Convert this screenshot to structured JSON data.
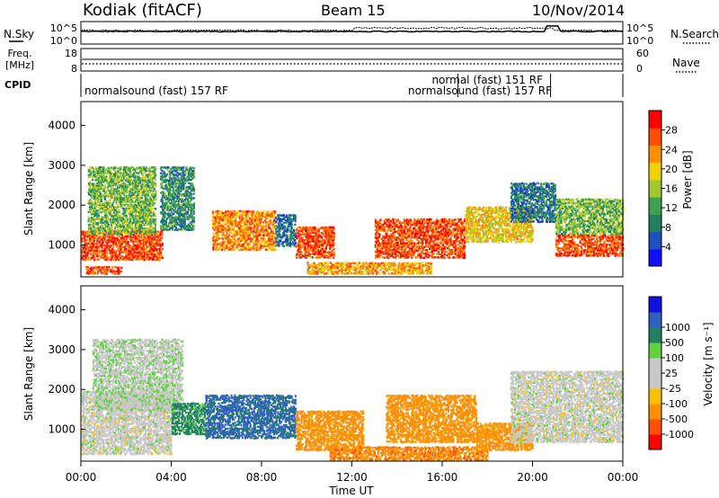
{
  "header": {
    "radar": "Kodiak (fitACF)",
    "beam": "Beam 15",
    "date": "10/Nov/2014"
  },
  "top_panels": {
    "nsky_label": "N.Sky",
    "nsearch_label": "N.Search",
    "nsky_ticks": [
      "10^5",
      "10^0"
    ],
    "nsearch_ticks": [
      "10^5",
      "10^0"
    ],
    "freq_label_1": "Freq.",
    "freq_label_2": "[MHz]",
    "freq_ticks": [
      "18",
      "8"
    ],
    "nave_label": "Nave",
    "nave_ticks": [
      "60",
      "0"
    ],
    "cpid_label": "CPID",
    "cpid_entries": [
      {
        "text": "normalsound (fast) 157 RF",
        "start_hour": 0.0
      },
      {
        "text": "normal (fast) 151 RF",
        "start_hour": 16.7
      },
      {
        "text": "normalsound (fast) 157 RF",
        "start_hour": 20.8
      }
    ]
  },
  "colors": {
    "power_scale": [
      "#1010ff",
      "#2050c0",
      "#208060",
      "#40a050",
      "#a0c830",
      "#f0d000",
      "#ff9000",
      "#ff5000",
      "#ff0000"
    ],
    "velocity_scale": [
      "#ff0000",
      "#ff5000",
      "#ff9000",
      "#ffc000",
      "#c8c8c8",
      "#c8c8c8",
      "#60d040",
      "#208060",
      "#3060c0",
      "#1010e0"
    ]
  },
  "chart_data": [
    {
      "type": "heatmap",
      "title": "",
      "ylabel": "Slant Range [km]",
      "xlabel": "",
      "y_ticks": [
        "1000",
        "2000",
        "3000",
        "4000"
      ],
      "ylim": [
        200,
        4600
      ],
      "xlim_hours": [
        0,
        24
      ],
      "colorbar_label": "Power [dB]",
      "colorbar_ticks": [
        "4",
        "8",
        "12",
        "16",
        "20",
        "24",
        "28"
      ],
      "colorbar_range": [
        0,
        32
      ],
      "regions": [
        {
          "t0": 0.0,
          "t1": 3.6,
          "r0": 650,
          "r1": 1400,
          "level": 27
        },
        {
          "t0": 0.3,
          "t1": 3.3,
          "r0": 1300,
          "r1": 3000,
          "level": 14
        },
        {
          "t0": 0.2,
          "t1": 1.8,
          "r0": 300,
          "r1": 500,
          "level": 27
        },
        {
          "t0": 3.5,
          "t1": 5.0,
          "r0": 1400,
          "r1": 3000,
          "level": 10
        },
        {
          "t0": 5.8,
          "t1": 8.6,
          "r0": 900,
          "r1": 1900,
          "level": 24
        },
        {
          "t0": 8.6,
          "t1": 9.5,
          "r0": 1000,
          "r1": 1800,
          "level": 8
        },
        {
          "t0": 9.5,
          "t1": 11.2,
          "r0": 700,
          "r1": 1500,
          "level": 27
        },
        {
          "t0": 10.0,
          "t1": 15.5,
          "r0": 300,
          "r1": 600,
          "level": 22
        },
        {
          "t0": 13.0,
          "t1": 17.0,
          "r0": 700,
          "r1": 1700,
          "level": 27
        },
        {
          "t0": 17.0,
          "t1": 20.0,
          "r0": 1100,
          "r1": 2000,
          "level": 20
        },
        {
          "t0": 19.0,
          "t1": 21.0,
          "r0": 1600,
          "r1": 2600,
          "level": 8
        },
        {
          "t0": 21.0,
          "t1": 24.0,
          "r0": 750,
          "r1": 1300,
          "level": 27
        },
        {
          "t0": 21.0,
          "t1": 24.0,
          "r0": 1300,
          "r1": 2200,
          "level": 14
        }
      ]
    },
    {
      "type": "heatmap",
      "title": "",
      "ylabel": "Slant Range [km]",
      "xlabel": "Time UT",
      "x_ticks": [
        "00:00",
        "04:00",
        "08:00",
        "12:00",
        "16:00",
        "20:00",
        "00:00"
      ],
      "y_ticks": [
        "1000",
        "2000",
        "3000",
        "4000"
      ],
      "ylim": [
        200,
        4600
      ],
      "xlim_hours": [
        0,
        24
      ],
      "colorbar_label": "Velocity [m s⁻¹]",
      "colorbar_ticks": [
        "-1000",
        "-500",
        "-100",
        "-25",
        "25",
        "100",
        "500",
        "1000"
      ],
      "regions": [
        {
          "t0": 0.0,
          "t1": 4.0,
          "r0": 400,
          "r1": 2000,
          "velocity": 0
        },
        {
          "t0": 0.5,
          "t1": 4.5,
          "r0": 1500,
          "r1": 3300,
          "velocity": 10
        },
        {
          "t0": 4.0,
          "t1": 5.5,
          "r0": 900,
          "r1": 1700,
          "velocity": 150
        },
        {
          "t0": 5.5,
          "t1": 9.5,
          "r0": 800,
          "r1": 1900,
          "velocity": 600
        },
        {
          "t0": 9.5,
          "t1": 12.5,
          "r0": 500,
          "r1": 1500,
          "velocity": -200
        },
        {
          "t0": 11.0,
          "t1": 18.0,
          "r0": 250,
          "r1": 600,
          "velocity": -400
        },
        {
          "t0": 13.5,
          "t1": 17.5,
          "r0": 700,
          "r1": 1900,
          "velocity": -200
        },
        {
          "t0": 17.5,
          "t1": 20.0,
          "r0": 500,
          "r1": 1200,
          "velocity": -200
        },
        {
          "t0": 19.0,
          "t1": 24.0,
          "r0": 700,
          "r1": 2500,
          "velocity": 0
        }
      ]
    }
  ]
}
